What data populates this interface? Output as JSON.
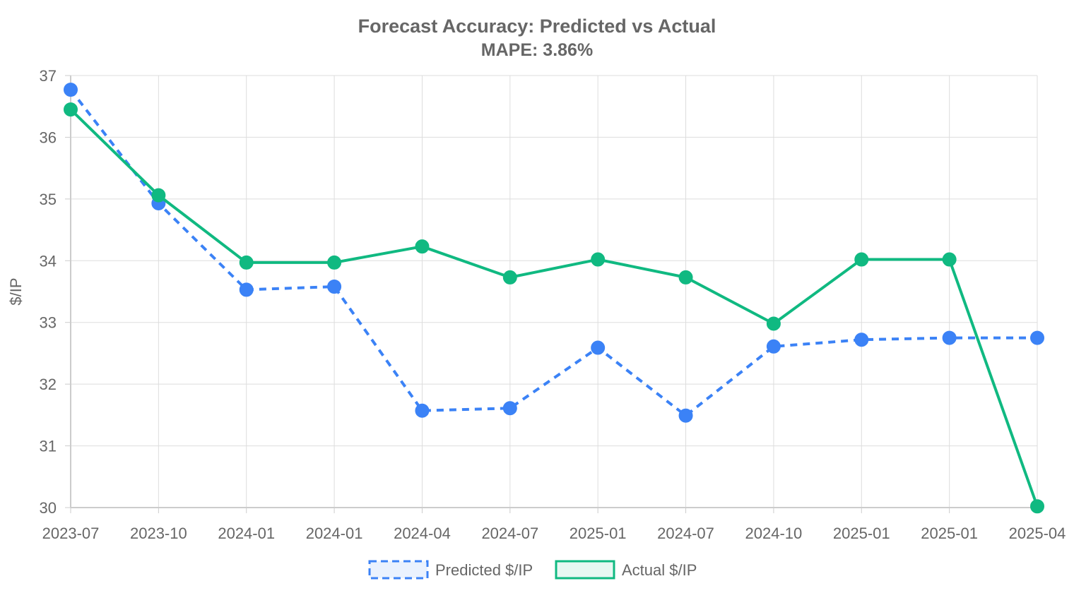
{
  "chart_data": {
    "type": "line",
    "title": "Forecast Accuracy: Predicted vs Actual",
    "subtitle": "MAPE: 3.86%",
    "xlabel": "",
    "ylabel": "$/IP",
    "categories": [
      "2023-07",
      "2023-10",
      "2024-01",
      "2024-01",
      "2024-04",
      "2024-07",
      "2025-01",
      "2024-07",
      "2024-10",
      "2025-01",
      "2025-01",
      "2025-04"
    ],
    "yticks": [
      "30",
      "31",
      "32",
      "33",
      "34",
      "35",
      "36",
      "37"
    ],
    "ylim": [
      30,
      37
    ],
    "grid": true,
    "legend_position": "bottom",
    "series": [
      {
        "name": "Predicted $/IP",
        "color": "#3b82f6",
        "style": "dashed",
        "values": [
          36.77,
          34.93,
          33.53,
          33.58,
          31.57,
          31.61,
          32.59,
          31.49,
          32.61,
          32.72,
          32.75,
          32.75
        ]
      },
      {
        "name": "Actual $/IP",
        "color": "#10b981",
        "style": "solid",
        "values": [
          36.45,
          35.06,
          33.97,
          33.97,
          34.23,
          33.73,
          34.02,
          33.73,
          32.98,
          34.02,
          34.02,
          30.02
        ]
      }
    ]
  }
}
